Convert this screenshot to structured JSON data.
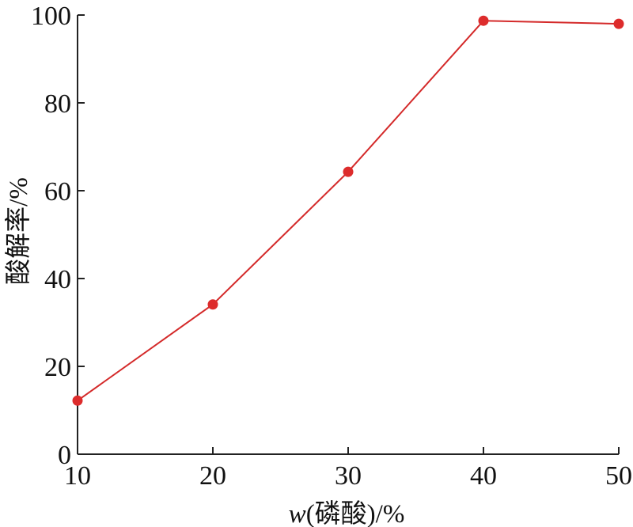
{
  "chart_data": {
    "type": "line",
    "xlabel": "w(磷酸)/%",
    "ylabel": "酸解率/%",
    "x": [
      10,
      20,
      30,
      40,
      50
    ],
    "series": [
      {
        "values": [
          12.2,
          34.1,
          64.3,
          98.7,
          98.0
        ]
      }
    ],
    "xlim": [
      10,
      50
    ],
    "ylim": [
      0,
      100
    ],
    "xticks": [
      10,
      20,
      30,
      40,
      50
    ],
    "yticks": [
      0,
      20,
      40,
      60,
      80,
      100
    ],
    "grid": false,
    "legend": "none",
    "colors": {
      "series": "#d42a2a",
      "marker": "#dd2c2c",
      "axis": "#222222"
    }
  }
}
